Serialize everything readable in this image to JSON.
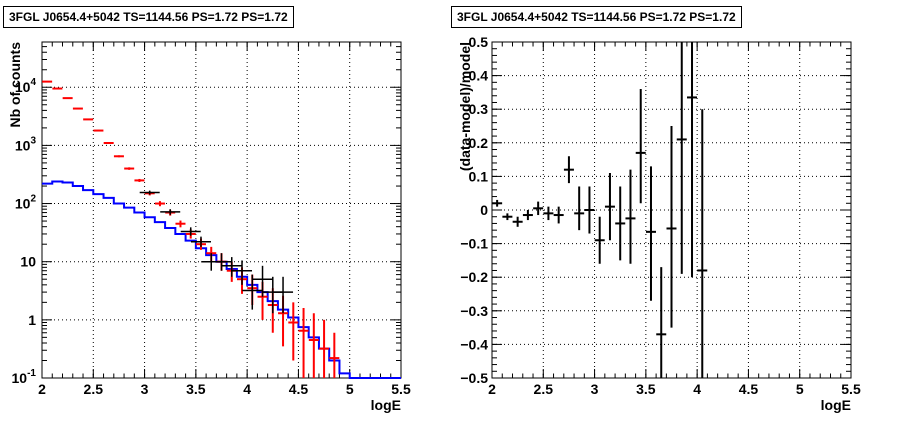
{
  "chart_data": [
    {
      "type": "histogram",
      "title": "3FGL J0654.4+5042 TS=1144.56 PS=1.72 PS=1.72",
      "xlabel": "logE",
      "ylabel": "Nb of counts",
      "xlim": [
        2,
        5.5
      ],
      "ylim": [
        0.1,
        60000
      ],
      "yscale": "log",
      "grid": true,
      "x_ticks": [
        "2",
        "2.5",
        "3",
        "3.5",
        "4",
        "4.5",
        "5",
        "5.5"
      ],
      "y_ticks": [
        "10^-1",
        "1",
        "10",
        "10^2",
        "10^3",
        "10^4"
      ],
      "bin_width": 0.1,
      "series": [
        {
          "color": "#ff0000",
          "style": "errorbar",
          "points": [
            {
              "x": 2.05,
              "y": 12500,
              "lo": 12300,
              "hi": 12700
            },
            {
              "x": 2.15,
              "y": 9500,
              "lo": 9350,
              "hi": 9650
            },
            {
              "x": 2.25,
              "y": 6500,
              "lo": 6380,
              "hi": 6620
            },
            {
              "x": 2.35,
              "y": 4300,
              "lo": 4220,
              "hi": 4380
            },
            {
              "x": 2.45,
              "y": 2800,
              "lo": 2740,
              "hi": 2860
            },
            {
              "x": 2.55,
              "y": 1800,
              "lo": 1750,
              "hi": 1850
            },
            {
              "x": 2.65,
              "y": 1100,
              "lo": 1070,
              "hi": 1130
            },
            {
              "x": 2.75,
              "y": 650,
              "lo": 625,
              "hi": 675
            },
            {
              "x": 2.85,
              "y": 400,
              "lo": 380,
              "hi": 420
            },
            {
              "x": 2.95,
              "y": 250,
              "lo": 235,
              "hi": 265
            },
            {
              "x": 3.05,
              "y": 150,
              "lo": 138,
              "hi": 162
            },
            {
              "x": 3.15,
              "y": 100,
              "lo": 90,
              "hi": 110
            },
            {
              "x": 3.25,
              "y": 70,
              "lo": 62,
              "hi": 78
            },
            {
              "x": 3.35,
              "y": 45,
              "lo": 39,
              "hi": 51
            },
            {
              "x": 3.45,
              "y": 30,
              "lo": 25,
              "hi": 36
            },
            {
              "x": 3.55,
              "y": 20,
              "lo": 16,
              "hi": 25
            },
            {
              "x": 3.65,
              "y": 14,
              "lo": 10,
              "hi": 18
            },
            {
              "x": 3.75,
              "y": 10,
              "lo": 7,
              "hi": 14
            },
            {
              "x": 3.85,
              "y": 7,
              "lo": 4.5,
              "hi": 10
            },
            {
              "x": 3.95,
              "y": 5,
              "lo": 2.8,
              "hi": 8
            },
            {
              "x": 4.05,
              "y": 3.5,
              "lo": 1.8,
              "hi": 6
            },
            {
              "x": 4.15,
              "y": 2.5,
              "lo": 1.0,
              "hi": 4.5
            },
            {
              "x": 4.25,
              "y": 1.8,
              "lo": 0.6,
              "hi": 3.5
            },
            {
              "x": 4.35,
              "y": 1.3,
              "lo": 0.35,
              "hi": 2.6
            },
            {
              "x": 4.45,
              "y": 0.9,
              "lo": 0.2,
              "hi": 2.0
            },
            {
              "x": 4.55,
              "y": 0.65,
              "lo": 0.1,
              "hi": 1.6
            },
            {
              "x": 4.65,
              "y": 0.45,
              "lo": 0.1,
              "hi": 1.3
            },
            {
              "x": 4.75,
              "y": 0.32,
              "lo": 0.1,
              "hi": 1.0
            },
            {
              "x": 4.85,
              "y": 0.22,
              "lo": 0.1,
              "hi": 0.6
            }
          ]
        },
        {
          "color": "#000000",
          "style": "errorbar",
          "points": [
            {
              "x": 3.05,
              "y": 155,
              "lo": 143,
              "hi": 167
            },
            {
              "x": 3.25,
              "y": 72,
              "lo": 64,
              "hi": 80
            },
            {
              "x": 3.45,
              "y": 33,
              "lo": 28,
              "hi": 39
            },
            {
              "x": 3.55,
              "y": 22,
              "lo": 18,
              "hi": 27
            },
            {
              "x": 3.65,
              "y": 10,
              "lo": 7,
              "hi": 14
            },
            {
              "x": 3.75,
              "y": 10,
              "lo": 7,
              "hi": 14
            },
            {
              "x": 3.85,
              "y": 8.5,
              "lo": 5.5,
              "hi": 12
            },
            {
              "x": 3.95,
              "y": 7,
              "lo": 4,
              "hi": 10.5
            },
            {
              "x": 4.05,
              "y": 3.2,
              "lo": 1.5,
              "hi": 6
            },
            {
              "x": 4.15,
              "y": 5,
              "lo": 2.5,
              "hi": 8.5
            },
            {
              "x": 4.25,
              "y": 3,
              "lo": 1.3,
              "hi": 5.5
            },
            {
              "x": 4.35,
              "y": 3,
              "lo": 1.3,
              "hi": 5.5
            }
          ]
        },
        {
          "color": "#0000ff",
          "style": "step",
          "values": [
            220,
            240,
            230,
            200,
            170,
            145,
            125,
            100,
            85,
            70,
            58,
            48,
            38,
            30,
            23,
            17,
            13,
            10,
            7.5,
            5.5,
            4.0,
            3.0,
            2.1,
            1.5,
            1.1,
            0.75,
            0.5,
            0.32,
            0.2,
            0.12,
            0.1,
            0.1,
            0.1,
            0.1,
            0.1
          ]
        }
      ]
    },
    {
      "type": "scatter",
      "title": "3FGL J0654.4+5042 TS=1144.56 PS=1.72 PS=1.72",
      "xlabel": "logE",
      "ylabel": "(data-model)/model",
      "xlim": [
        2,
        5.5
      ],
      "ylim": [
        -0.5,
        0.5
      ],
      "grid": true,
      "x_ticks": [
        "2",
        "2.5",
        "3",
        "3.5",
        "4",
        "4.5",
        "5",
        "5.5"
      ],
      "y_ticks": [
        "−0.5",
        "−0.4",
        "−0.3",
        "−0.2",
        "−0.1",
        "0",
        "0.1",
        "0.2",
        "0.3",
        "0.4",
        "0.5"
      ],
      "bin_width": 0.1,
      "series": [
        {
          "color": "#000000",
          "style": "errorbar",
          "points": [
            {
              "x": 2.05,
              "y": 0.02,
              "lo": 0.01,
              "hi": 0.03
            },
            {
              "x": 2.15,
              "y": -0.02,
              "lo": -0.03,
              "hi": -0.01
            },
            {
              "x": 2.25,
              "y": -0.035,
              "lo": -0.05,
              "hi": -0.02
            },
            {
              "x": 2.35,
              "y": -0.015,
              "lo": -0.03,
              "hi": 0.0
            },
            {
              "x": 2.45,
              "y": 0.005,
              "lo": -0.015,
              "hi": 0.025
            },
            {
              "x": 2.55,
              "y": -0.01,
              "lo": -0.03,
              "hi": 0.01
            },
            {
              "x": 2.65,
              "y": -0.015,
              "lo": -0.04,
              "hi": 0.01
            },
            {
              "x": 2.75,
              "y": 0.12,
              "lo": 0.08,
              "hi": 0.16
            },
            {
              "x": 2.85,
              "y": -0.01,
              "lo": -0.06,
              "hi": 0.07
            },
            {
              "x": 2.95,
              "y": 0.0,
              "lo": -0.07,
              "hi": 0.07
            },
            {
              "x": 3.05,
              "y": -0.09,
              "lo": -0.16,
              "hi": -0.02
            },
            {
              "x": 3.15,
              "y": 0.01,
              "lo": -0.09,
              "hi": 0.11
            },
            {
              "x": 3.25,
              "y": -0.04,
              "lo": -0.15,
              "hi": 0.07
            },
            {
              "x": 3.35,
              "y": -0.025,
              "lo": -0.16,
              "hi": 0.12
            },
            {
              "x": 3.45,
              "y": 0.17,
              "lo": 0.02,
              "hi": 0.36
            },
            {
              "x": 3.55,
              "y": -0.065,
              "lo": -0.27,
              "hi": 0.13
            },
            {
              "x": 3.65,
              "y": -0.37,
              "lo": -0.5,
              "hi": -0.17
            },
            {
              "x": 3.75,
              "y": -0.055,
              "lo": -0.35,
              "hi": 0.25
            },
            {
              "x": 3.85,
              "y": 0.21,
              "lo": -0.19,
              "hi": 0.5
            },
            {
              "x": 3.95,
              "y": 0.335,
              "lo": -0.2,
              "hi": 0.5
            },
            {
              "x": 4.05,
              "y": -0.18,
              "lo": -0.5,
              "hi": 0.3
            }
          ]
        }
      ]
    }
  ]
}
